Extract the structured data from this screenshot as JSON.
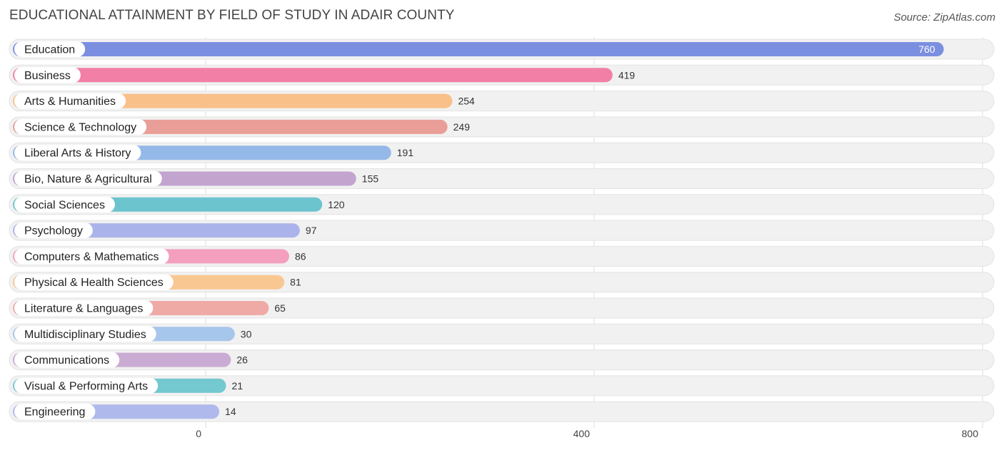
{
  "header": {
    "title": "Educational Attainment by Field of Study in Adair County",
    "source": "Source: ZipAtlas.com"
  },
  "chart_data": {
    "type": "bar",
    "orientation": "horizontal",
    "title": "Educational Attainment by Field of Study in Adair County",
    "xlabel": "",
    "ylabel": "",
    "xlim": [
      0,
      800
    ],
    "ticks": [
      0,
      400,
      800
    ],
    "grid": true,
    "categories": [
      "Education",
      "Business",
      "Arts & Humanities",
      "Science & Technology",
      "Liberal Arts & History",
      "Bio, Nature & Agricultural",
      "Social Sciences",
      "Psychology",
      "Computers & Mathematics",
      "Physical & Health Sciences",
      "Literature & Languages",
      "Multidisciplinary Studies",
      "Communications",
      "Visual & Performing Arts",
      "Engineering"
    ],
    "values": [
      760,
      419,
      254,
      249,
      191,
      155,
      120,
      97,
      86,
      81,
      65,
      30,
      26,
      21,
      14
    ],
    "colors": [
      "#7b8fe0",
      "#f27fa6",
      "#f9c08a",
      "#e99e98",
      "#94b8e8",
      "#c3a4cf",
      "#6cc4cf",
      "#abb4ea",
      "#f39fbd",
      "#f9c792",
      "#efaaa5",
      "#a7c6ec",
      "#c9abd3",
      "#74c8cf",
      "#b0b9ec"
    ]
  }
}
